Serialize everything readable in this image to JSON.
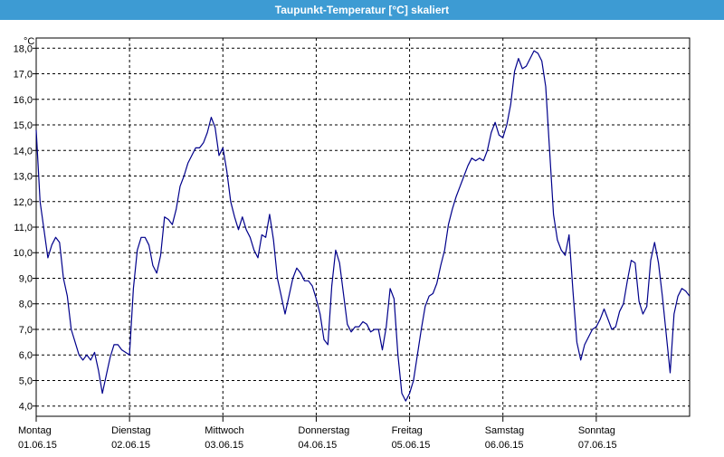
{
  "window": {
    "title": "Taupunkt-Temperatur [°C] skaliert"
  },
  "chart_data": {
    "type": "line",
    "title": "Taupunkt-Temperatur [°C] skaliert",
    "ylabel": "°C",
    "xlabel": "",
    "ylim": [
      3.6,
      18.4
    ],
    "yticks": [
      4.0,
      5.0,
      6.0,
      7.0,
      8.0,
      9.0,
      10.0,
      11.0,
      12.0,
      13.0,
      14.0,
      15.0,
      16.0,
      17.0,
      18.0
    ],
    "ytick_labels": [
      "4,0",
      "5,0",
      "6,0",
      "7,0",
      "8,0",
      "9,0",
      "10,0",
      "11,0",
      "12,0",
      "13,0",
      "14,0",
      "15,0",
      "16,0",
      "17,0",
      "18,0"
    ],
    "xlim": [
      0,
      168
    ],
    "x_unit": "hours since Montag 01.06.15 00:00",
    "days": [
      {
        "name": "Montag",
        "date": "01.06.15",
        "x": 0
      },
      {
        "name": "Dienstag",
        "date": "02.06.15",
        "x": 24
      },
      {
        "name": "Mittwoch",
        "date": "03.06.15",
        "x": 48
      },
      {
        "name": "Donnerstag",
        "date": "04.06.15",
        "x": 72
      },
      {
        "name": "Freitag",
        "date": "05.06.15",
        "x": 96
      },
      {
        "name": "Samstag",
        "date": "06.06.15",
        "x": 120
      },
      {
        "name": "Sonntag",
        "date": "07.06.15",
        "x": 144
      }
    ],
    "grid": true,
    "series": [
      {
        "color": "#00008b",
        "points": [
          [
            0,
            14.8
          ],
          [
            1,
            12.0
          ],
          [
            2,
            10.9
          ],
          [
            3,
            9.8
          ],
          [
            4,
            10.3
          ],
          [
            5,
            10.6
          ],
          [
            6,
            10.4
          ],
          [
            7,
            9.0
          ],
          [
            8,
            8.3
          ],
          [
            9,
            7.0
          ],
          [
            10,
            6.5
          ],
          [
            11,
            6.0
          ],
          [
            12,
            5.8
          ],
          [
            13,
            6.0
          ],
          [
            14,
            5.8
          ],
          [
            15,
            6.1
          ],
          [
            16,
            5.4
          ],
          [
            17,
            4.5
          ],
          [
            18,
            5.2
          ],
          [
            19,
            5.9
          ],
          [
            20,
            6.4
          ],
          [
            21,
            6.4
          ],
          [
            22,
            6.2
          ],
          [
            23,
            6.1
          ],
          [
            24,
            6.0
          ],
          [
            25,
            8.6
          ],
          [
            26,
            10.1
          ],
          [
            27,
            10.6
          ],
          [
            28,
            10.6
          ],
          [
            29,
            10.3
          ],
          [
            30,
            9.5
          ],
          [
            31,
            9.2
          ],
          [
            32,
            9.9
          ],
          [
            33,
            11.4
          ],
          [
            34,
            11.3
          ],
          [
            35,
            11.1
          ],
          [
            36,
            11.7
          ],
          [
            37,
            12.6
          ],
          [
            38,
            13.0
          ],
          [
            39,
            13.5
          ],
          [
            40,
            13.8
          ],
          [
            41,
            14.1
          ],
          [
            42,
            14.1
          ],
          [
            43,
            14.3
          ],
          [
            44,
            14.7
          ],
          [
            45,
            15.3
          ],
          [
            46,
            14.9
          ],
          [
            47,
            13.8
          ],
          [
            48,
            14.1
          ],
          [
            49,
            13.2
          ],
          [
            50,
            12.0
          ],
          [
            51,
            11.4
          ],
          [
            52,
            10.9
          ],
          [
            53,
            11.4
          ],
          [
            54,
            10.9
          ],
          [
            55,
            10.6
          ],
          [
            56,
            10.1
          ],
          [
            57,
            9.8
          ],
          [
            58,
            10.7
          ],
          [
            59,
            10.6
          ],
          [
            60,
            11.5
          ],
          [
            61,
            10.5
          ],
          [
            62,
            9.0
          ],
          [
            63,
            8.3
          ],
          [
            64,
            7.6
          ],
          [
            65,
            8.3
          ],
          [
            66,
            9.0
          ],
          [
            67,
            9.4
          ],
          [
            68,
            9.2
          ],
          [
            69,
            8.9
          ],
          [
            70,
            8.9
          ],
          [
            71,
            8.7
          ],
          [
            72,
            8.2
          ],
          [
            73,
            7.6
          ],
          [
            74,
            6.6
          ],
          [
            75,
            6.4
          ],
          [
            76,
            8.7
          ],
          [
            77,
            10.1
          ],
          [
            78,
            9.6
          ],
          [
            79,
            8.4
          ],
          [
            80,
            7.2
          ],
          [
            81,
            6.9
          ],
          [
            82,
            7.1
          ],
          [
            83,
            7.1
          ],
          [
            84,
            7.3
          ],
          [
            85,
            7.2
          ],
          [
            86,
            6.9
          ],
          [
            87,
            7.0
          ],
          [
            88,
            7.0
          ],
          [
            89,
            6.2
          ],
          [
            90,
            7.1
          ],
          [
            91,
            8.6
          ],
          [
            92,
            8.2
          ],
          [
            93,
            6.0
          ],
          [
            94,
            4.5
          ],
          [
            95,
            4.2
          ],
          [
            96,
            4.5
          ],
          [
            97,
            5.0
          ],
          [
            98,
            6.0
          ],
          [
            99,
            7.0
          ],
          [
            100,
            7.9
          ],
          [
            101,
            8.3
          ],
          [
            102,
            8.4
          ],
          [
            103,
            8.8
          ],
          [
            104,
            9.5
          ],
          [
            105,
            10.1
          ],
          [
            106,
            11.1
          ],
          [
            107,
            11.7
          ],
          [
            108,
            12.2
          ],
          [
            109,
            12.6
          ],
          [
            110,
            13.0
          ],
          [
            111,
            13.4
          ],
          [
            112,
            13.7
          ],
          [
            113,
            13.6
          ],
          [
            114,
            13.7
          ],
          [
            115,
            13.6
          ],
          [
            116,
            14.0
          ],
          [
            117,
            14.7
          ],
          [
            118,
            15.1
          ],
          [
            119,
            14.6
          ],
          [
            120,
            14.5
          ],
          [
            121,
            15.0
          ],
          [
            122,
            15.8
          ],
          [
            123,
            17.1
          ],
          [
            124,
            17.6
          ],
          [
            125,
            17.2
          ],
          [
            126,
            17.3
          ],
          [
            127,
            17.6
          ],
          [
            128,
            17.9
          ],
          [
            129,
            17.8
          ],
          [
            130,
            17.5
          ],
          [
            131,
            16.5
          ],
          [
            132,
            14.0
          ],
          [
            133,
            11.5
          ],
          [
            134,
            10.5
          ],
          [
            135,
            10.1
          ],
          [
            136,
            9.9
          ],
          [
            137,
            10.7
          ],
          [
            138,
            8.5
          ],
          [
            139,
            6.5
          ],
          [
            140,
            5.8
          ],
          [
            141,
            6.4
          ],
          [
            142,
            6.7
          ],
          [
            143,
            7.0
          ],
          [
            144,
            7.1
          ],
          [
            145,
            7.4
          ],
          [
            146,
            7.8
          ],
          [
            147,
            7.4
          ],
          [
            148,
            7.0
          ],
          [
            149,
            7.1
          ],
          [
            150,
            7.7
          ],
          [
            151,
            8.0
          ],
          [
            152,
            8.9
          ],
          [
            153,
            9.7
          ],
          [
            154,
            9.6
          ],
          [
            155,
            8.1
          ],
          [
            156,
            7.6
          ],
          [
            157,
            7.9
          ],
          [
            158,
            9.7
          ],
          [
            159,
            10.4
          ],
          [
            160,
            9.6
          ],
          [
            161,
            8.3
          ],
          [
            162,
            6.8
          ],
          [
            163,
            5.3
          ],
          [
            164,
            7.6
          ],
          [
            165,
            8.3
          ],
          [
            166,
            8.6
          ],
          [
            167,
            8.5
          ],
          [
            168,
            8.3
          ]
        ]
      }
    ]
  }
}
